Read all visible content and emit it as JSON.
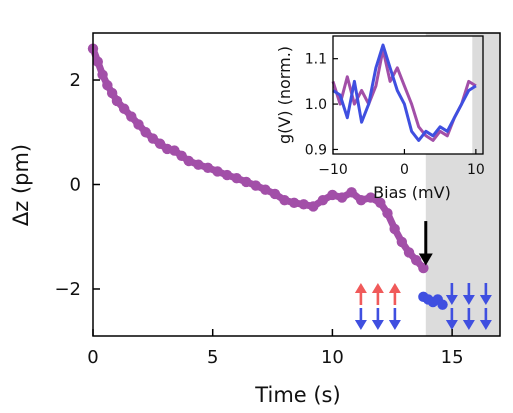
{
  "chart_data": [
    {
      "type": "scatter",
      "title": "",
      "xlabel": "Time (s)",
      "ylabel": "Δz (pm)",
      "xlim": [
        0,
        17
      ],
      "ylim": [
        -2.9,
        2.9
      ],
      "xticks": [
        0,
        5,
        10,
        15
      ],
      "xtick_labels": [
        "0",
        "5",
        "10",
        "15"
      ],
      "yticks": [
        2,
        0,
        -2
      ],
      "ytick_labels": [
        "2",
        "0",
        "−2"
      ],
      "grid": false,
      "shaded_region": {
        "x_from": 13.9,
        "x_to": 17,
        "color": "#dcdcdc"
      },
      "series": [
        {
          "color": "#a24fa8",
          "x": [
            0.0,
            0.2,
            0.4,
            0.6,
            0.8,
            1.0,
            1.3,
            1.6,
            1.9,
            2.2,
            2.5,
            2.8,
            3.1,
            3.4,
            3.7,
            4.0,
            4.4,
            4.8,
            5.2,
            5.6,
            6.0,
            6.4,
            6.8,
            7.2,
            7.6,
            8.0,
            8.4,
            8.8,
            9.2,
            9.6,
            10.0,
            10.4,
            10.8,
            11.2,
            11.6,
            12.0,
            12.3,
            12.6,
            12.9,
            13.2,
            13.5,
            13.8
          ],
          "y": [
            2.6,
            2.35,
            2.1,
            1.9,
            1.75,
            1.6,
            1.45,
            1.3,
            1.15,
            1.0,
            0.88,
            0.78,
            0.68,
            0.65,
            0.55,
            0.45,
            0.38,
            0.32,
            0.25,
            0.18,
            0.12,
            0.05,
            -0.02,
            -0.1,
            -0.18,
            -0.3,
            -0.35,
            -0.38,
            -0.42,
            -0.3,
            -0.2,
            -0.25,
            -0.15,
            -0.3,
            -0.25,
            -0.35,
            -0.55,
            -0.85,
            -1.1,
            -1.3,
            -1.45,
            -1.6
          ]
        },
        {
          "color": "#3f4fe0",
          "x": [
            13.8,
            14.0,
            14.2,
            14.4,
            14.6
          ],
          "y": [
            -2.15,
            -2.2,
            -2.25,
            -2.2,
            -2.3
          ]
        }
      ],
      "annotations": {
        "arrow": {
          "x": 13.9,
          "y_from": -0.7,
          "y_to": -1.55,
          "color": "#000000"
        },
        "spin_groups": [
          {
            "x_center": 11.9,
            "rows": [
              {
                "direction": "up",
                "color": "#f05a5a"
              },
              {
                "direction": "down",
                "color": "#3f4fe0"
              }
            ]
          },
          {
            "x_center": 15.7,
            "rows": [
              {
                "direction": "down",
                "color": "#3f4fe0"
              },
              {
                "direction": "down",
                "color": "#3f4fe0"
              }
            ]
          }
        ]
      }
    },
    {
      "type": "line",
      "title": "",
      "xlabel": "Bias (mV)",
      "ylabel": "g(V) (norm.)",
      "xlim": [
        -10,
        11
      ],
      "ylim": [
        0.89,
        1.15
      ],
      "xticks": [
        -10,
        0,
        10
      ],
      "xtick_labels": [
        "−10",
        "0",
        "10"
      ],
      "yticks": [
        0.9,
        1.0,
        1.1
      ],
      "ytick_labels": [
        "0.9",
        "1.0",
        "1.1"
      ],
      "shaded_region": {
        "x_from": 9.5,
        "x_to": 11,
        "color": "#dcdcdc"
      },
      "series": [
        {
          "color": "#a24fa8",
          "x": [
            -10,
            -9,
            -8,
            -7,
            -6,
            -5,
            -4,
            -3,
            -2,
            -1,
            0,
            1,
            2,
            3,
            4,
            5,
            6,
            7,
            8,
            9,
            10
          ],
          "y": [
            1.05,
            1.0,
            1.06,
            1.0,
            1.03,
            1.0,
            1.04,
            1.12,
            1.05,
            1.08,
            1.04,
            1.0,
            0.95,
            0.93,
            0.92,
            0.94,
            0.93,
            0.97,
            1.0,
            1.05,
            1.04
          ]
        },
        {
          "color": "#3f4fe0",
          "x": [
            -10,
            -9,
            -8,
            -7,
            -6,
            -5,
            -4,
            -3,
            -2,
            -1,
            0,
            1,
            2,
            3,
            4,
            5,
            6,
            7,
            8,
            9,
            10
          ],
          "y": [
            1.03,
            1.02,
            0.97,
            1.05,
            0.96,
            1.0,
            1.08,
            1.13,
            1.08,
            1.03,
            1.0,
            0.94,
            0.92,
            0.94,
            0.93,
            0.95,
            0.94,
            0.97,
            1.0,
            1.03,
            1.04
          ]
        }
      ]
    }
  ]
}
